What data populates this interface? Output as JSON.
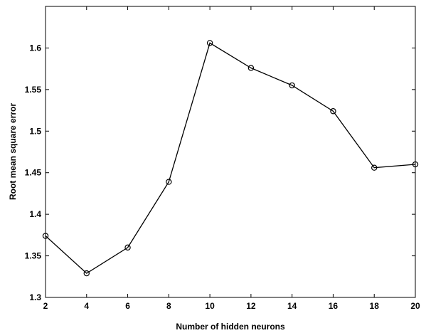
{
  "chart_data": {
    "type": "line",
    "title": "",
    "xlabel": "Number of hidden neurons",
    "ylabel": "Root mean square error",
    "xlim": [
      2,
      20
    ],
    "ylim": [
      1.3,
      1.65
    ],
    "x_ticks": [
      2,
      4,
      6,
      8,
      10,
      12,
      14,
      16,
      18,
      20
    ],
    "y_ticks": [
      1.3,
      1.35,
      1.4,
      1.45,
      1.5,
      1.55,
      1.6
    ],
    "y_tick_labels": [
      "1.3",
      "1.35",
      "1.4",
      "1.45",
      "1.5",
      "1.55",
      "1.6"
    ],
    "grid": false,
    "legend": "none",
    "marker": "circle",
    "line_color": "#000000",
    "series": [
      {
        "x": [
          2,
          4,
          6,
          8,
          10,
          12,
          14,
          16,
          18,
          20
        ],
        "values": [
          1.374,
          1.329,
          1.36,
          1.439,
          1.606,
          1.576,
          1.555,
          1.524,
          1.456,
          1.46
        ]
      }
    ]
  }
}
